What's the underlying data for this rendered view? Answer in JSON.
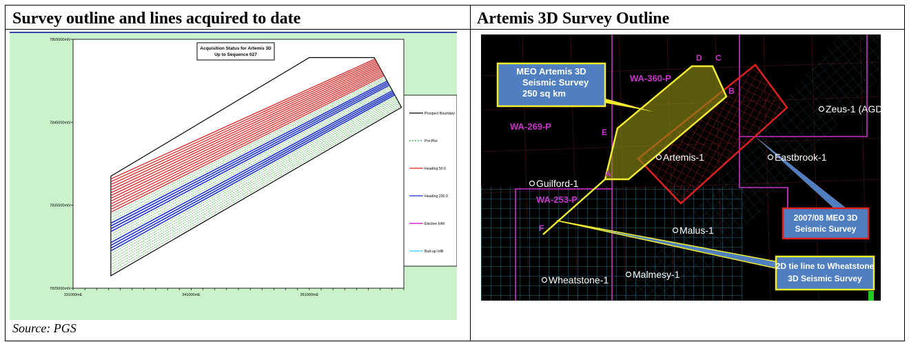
{
  "left_panel": {
    "title": "Survey outline and lines acquired to date",
    "source": "Source: PGS"
  },
  "right_panel": {
    "title": "Artemis 3D Survey Outline"
  },
  "chart_data": {
    "type": "line",
    "title": "Acquisition Status for Artemis 3D",
    "subtitle": "Up to Sequence 027",
    "x_ticks": [
      "331000mE",
      "341000mE",
      "351000mE"
    ],
    "y_ticks": [
      "7855000mN",
      "7845000mN",
      "7835000mN",
      "7825000mN"
    ],
    "xlim": [
      331000,
      359000
    ],
    "ylim": [
      7825000,
      7855000
    ],
    "series": [
      {
        "name": "Prospect Boundary",
        "color": "#000000"
      },
      {
        "name": "Pre-Plot",
        "color": "#22aa22"
      },
      {
        "name": "Heading 50.0",
        "color": "#dd2222"
      },
      {
        "name": "Heading 230.0",
        "color": "#1a2fcc"
      },
      {
        "name": "Elective Infill",
        "color": "#cc00cc"
      },
      {
        "name": "Butt-up Infill",
        "color": "#33ccee"
      }
    ],
    "prospect_boundary": [
      [
        334200,
        7838500
      ],
      [
        351000,
        7852800
      ],
      [
        356500,
        7852800
      ],
      [
        358800,
        7846800
      ],
      [
        334200,
        7826500
      ]
    ]
  },
  "map": {
    "labels": {
      "survey_box": [
        "MEO Artemis 3D",
        "Seismic Survey",
        "250 sq km"
      ],
      "meo_box": [
        "2007/08 MEO 3D",
        "Seismic Survey"
      ],
      "tie_box": [
        "2D tie line to Wheatstone",
        "3D Seismic Survey"
      ],
      "permits": [
        "WA-360-P",
        "WA-269-P",
        "WA-253-P"
      ],
      "corners": [
        "A",
        "B",
        "C",
        "D",
        "E",
        "F"
      ],
      "wells": [
        "Zeus-1 (AGD",
        "Eastbrook-1",
        "Artemis-1",
        "Guilford-1",
        "Malus-1",
        "Wheatstone-1",
        "Malmesy-1"
      ]
    },
    "colors": {
      "background": "#000000",
      "yellow": "#f2ee2e",
      "red": "#dd2020",
      "magenta": "#cc33cc",
      "box_fill": "#4f7fc0",
      "cyan": "#4ab0c8"
    }
  }
}
